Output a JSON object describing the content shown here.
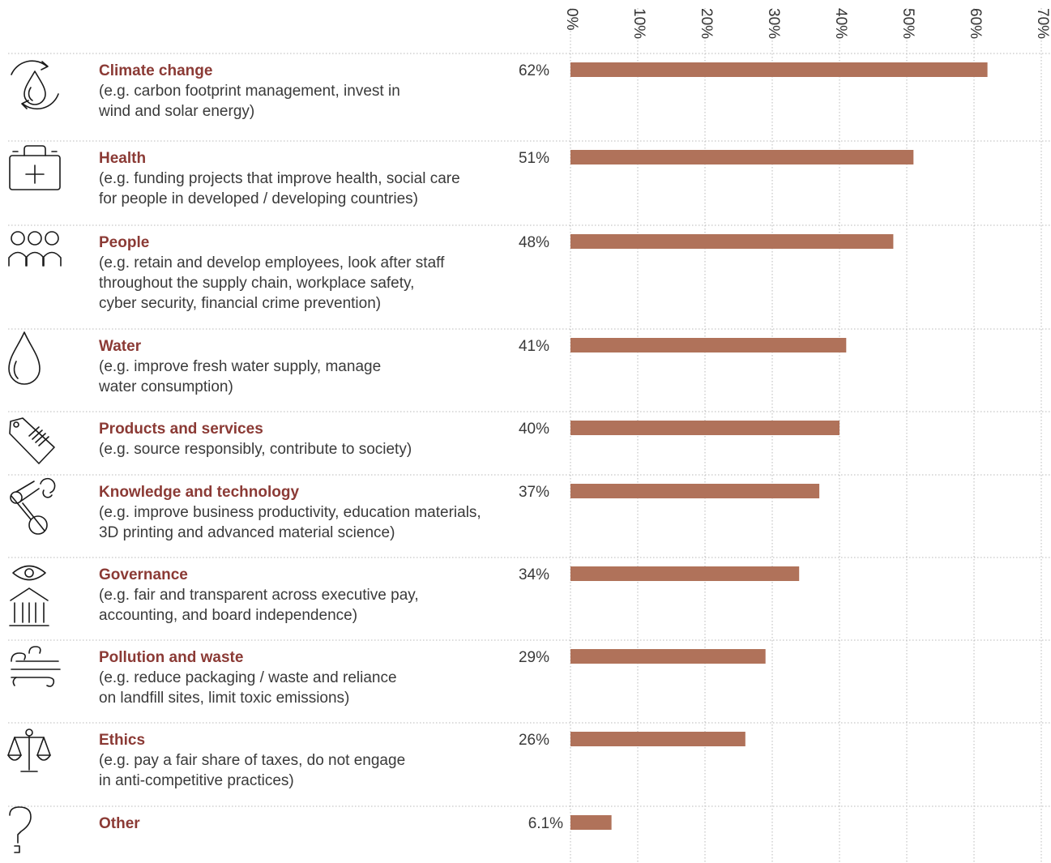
{
  "chart_data": {
    "type": "bar",
    "orientation": "horizontal",
    "xlim": [
      0,
      70
    ],
    "x_ticks": [
      "0%",
      "10%",
      "20%",
      "30%",
      "40%",
      "50%",
      "60%",
      "70%"
    ],
    "grid": true,
    "bar_color": "#b0725a",
    "title_color": "#8b3a35",
    "categories": [
      {
        "title": "Climate change",
        "desc": [
          "(e.g. carbon footprint management, invest in",
          "wind and solar energy)"
        ],
        "value": 62,
        "label": "62%",
        "icon": "climate-cycle-icon"
      },
      {
        "title": "Health",
        "desc": [
          "(e.g. funding projects that improve health, social care",
          "for people in developed / developing countries)"
        ],
        "value": 51,
        "label": "51%",
        "icon": "medical-kit-icon"
      },
      {
        "title": "People",
        "desc": [
          "(e.g. retain and develop employees, look after staff",
          "throughout the supply chain, workplace safety,",
          "cyber security, financial crime prevention)"
        ],
        "value": 48,
        "label": "48%",
        "icon": "people-group-icon"
      },
      {
        "title": "Water",
        "desc": [
          "(e.g. improve fresh water supply, manage",
          "water consumption)"
        ],
        "value": 41,
        "label": "41%",
        "icon": "water-drop-icon"
      },
      {
        "title": "Products and services",
        "desc": [
          "(e.g. source responsibly, contribute to society)"
        ],
        "value": 40,
        "label": "40%",
        "icon": "price-tag-icon"
      },
      {
        "title": "Knowledge and technology",
        "desc": [
          "(e.g. improve business productivity, education materials,",
          "3D printing and advanced material science)"
        ],
        "value": 37,
        "label": "37%",
        "icon": "robot-arm-icon"
      },
      {
        "title": "Governance",
        "desc": [
          "(e.g. fair and transparent across executive pay,",
          "accounting, and board independence)"
        ],
        "value": 34,
        "label": "34%",
        "icon": "eye-institution-icon"
      },
      {
        "title": "Pollution and waste",
        "desc": [
          "(e.g. reduce packaging / waste and reliance",
          "on landfill sites, limit toxic emissions)"
        ],
        "value": 29,
        "label": "29%",
        "icon": "wind-smog-icon"
      },
      {
        "title": "Ethics",
        "desc": [
          "(e.g. pay a fair share of taxes, do not engage",
          "in anti-competitive practices)"
        ],
        "value": 26,
        "label": "26%",
        "icon": "scales-icon"
      },
      {
        "title": "Other",
        "desc": [],
        "value": 6.1,
        "label": "6.1%",
        "icon": "question-mark-icon"
      }
    ]
  }
}
